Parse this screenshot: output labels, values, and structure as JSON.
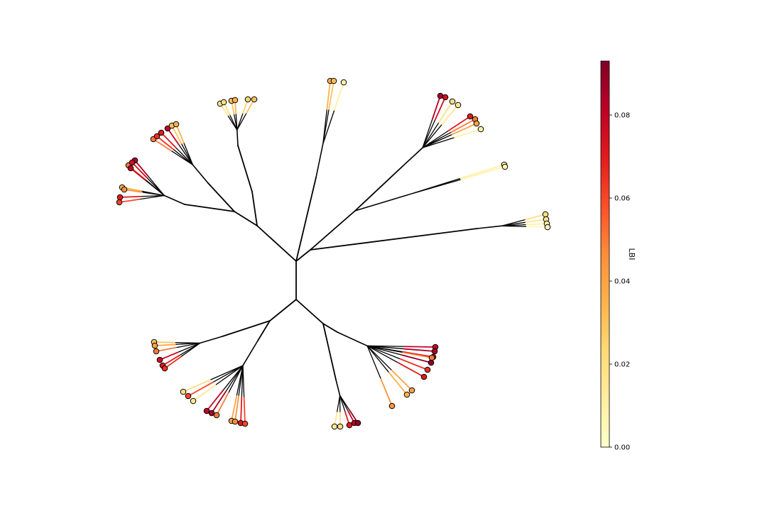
{
  "chart_data": {
    "type": "unrooted-phylogenetic-tree",
    "colorbar": {
      "label": "LBI",
      "min": 0.0,
      "max": 0.093,
      "ticks": [
        {
          "value": 0.0,
          "label": "0.00"
        },
        {
          "value": 0.02,
          "label": "0.02"
        },
        {
          "value": 0.04,
          "label": "0.04"
        },
        {
          "value": 0.06,
          "label": "0.06"
        },
        {
          "value": 0.08,
          "label": "0.08"
        }
      ],
      "colormap": [
        "#ffffcc",
        "#ffeda0",
        "#fed976",
        "#feb24c",
        "#fd8d3c",
        "#fc4e2a",
        "#e31a1c",
        "#bd0026",
        "#800026"
      ]
    },
    "clades": [
      {
        "name": "clade-upper-left-outer",
        "lbi": [
          0.06,
          0.07,
          0.035,
          0.05,
          0.08,
          0.085,
          0.075,
          0.045
        ]
      },
      {
        "name": "clade-upper-left-inner",
        "lbi": [
          0.05,
          0.065,
          0.07,
          0.08,
          0.03,
          0.035
        ]
      },
      {
        "name": "clade-top-left",
        "lbi": [
          0.015,
          0.02,
          0.03,
          0.035,
          0.025,
          0.03
        ]
      },
      {
        "name": "clade-top",
        "lbi": [
          0.035,
          0.03,
          0.01
        ]
      },
      {
        "name": "clade-top-right",
        "lbi": [
          0.085,
          0.075,
          0.02,
          0.015,
          0.07,
          0.05,
          0.04,
          0.01
        ]
      },
      {
        "name": "clade-right-single",
        "lbi": [
          0.01,
          0.008
        ]
      },
      {
        "name": "clade-right-far",
        "lbi": [
          0.02,
          0.015,
          0.01,
          0.005
        ]
      },
      {
        "name": "clade-lower-right",
        "lbi": [
          0.08,
          0.085,
          0.075,
          0.09,
          0.05,
          0.065,
          0.07,
          0.04,
          0.035,
          0.045
        ]
      },
      {
        "name": "clade-bottom-center",
        "lbi": [
          0.015,
          0.02,
          0.07,
          0.08,
          0.09
        ]
      },
      {
        "name": "clade-lower-left-a",
        "lbi": [
          0.03,
          0.04,
          0.05,
          0.075,
          0.07,
          0.065
        ]
      },
      {
        "name": "clade-lower-left-b",
        "lbi": [
          0.02,
          0.06,
          0.015,
          0.08,
          0.085,
          0.05,
          0.04,
          0.045,
          0.07,
          0.06
        ]
      }
    ]
  }
}
